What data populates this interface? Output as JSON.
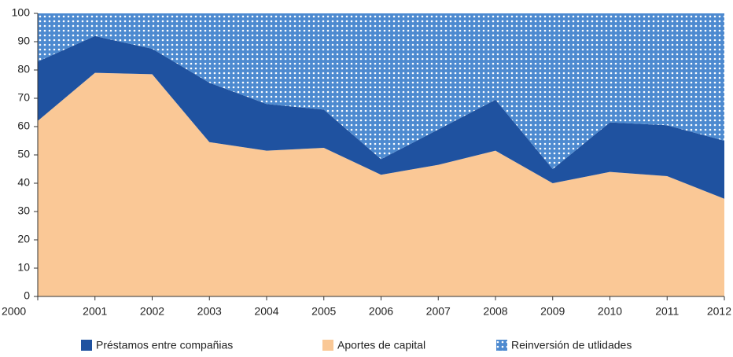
{
  "chart_data": {
    "type": "stacked_area",
    "categories": [
      "2000",
      "2001",
      "2002",
      "2003",
      "2004",
      "2005",
      "2006",
      "2007",
      "2008",
      "2009",
      "2010",
      "2011",
      "2012"
    ],
    "series": [
      {
        "name": "Préstamos entre compañias",
        "color": "#1f52a0",
        "values": [
          21,
          13,
          9,
          21,
          16.5,
          13.5,
          5.5,
          12.5,
          18,
          5,
          17.5,
          18,
          20.5
        ]
      },
      {
        "name": "Aportes de capital",
        "color": "#fac896",
        "values": [
          62,
          79,
          78.5,
          54.5,
          51.5,
          52.5,
          43,
          46.5,
          51.5,
          40,
          44,
          42.5,
          34.5
        ]
      },
      {
        "name": "Reinversión de utlidades",
        "color": "#4d8ad0",
        "values": [
          17,
          8,
          12.5,
          24.5,
          32,
          34,
          51.5,
          41,
          30.5,
          55,
          38.5,
          39.5,
          45
        ]
      }
    ],
    "ylim": [
      0,
      100
    ],
    "yticks": [
      0,
      10,
      20,
      30,
      40,
      50,
      60,
      70,
      80,
      90,
      100
    ],
    "legend": "bottom"
  }
}
